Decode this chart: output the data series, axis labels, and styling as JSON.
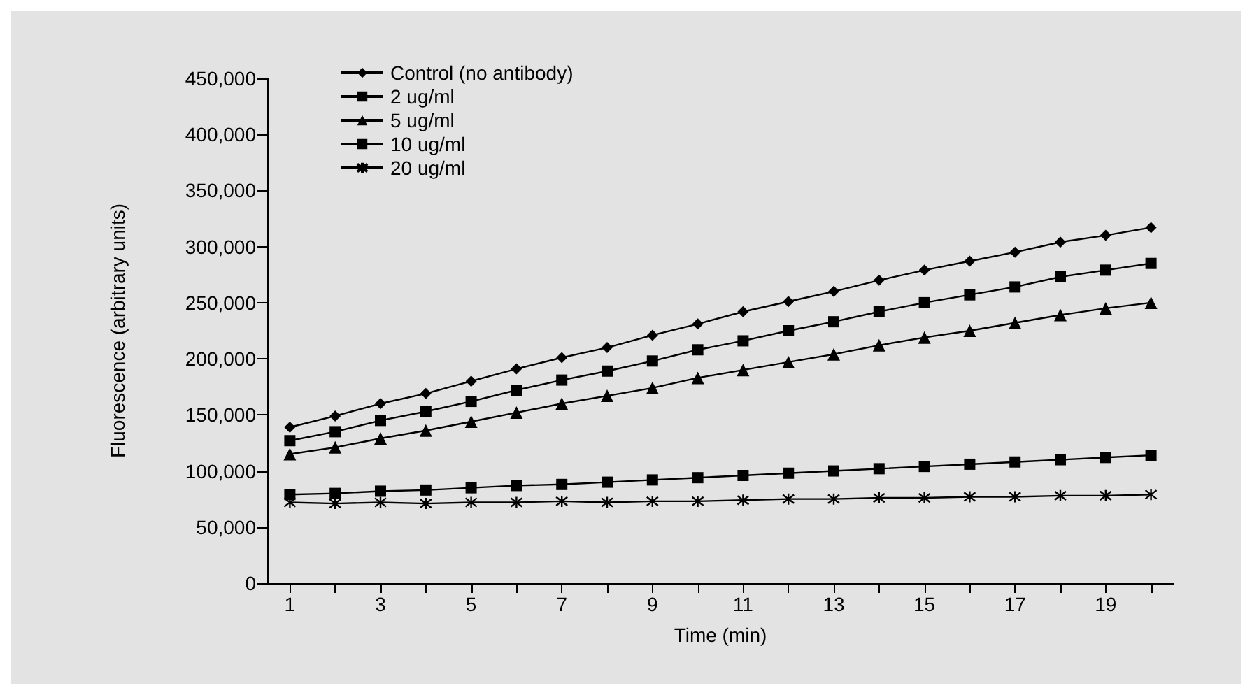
{
  "chart_data": {
    "type": "line",
    "xlabel": "Time (min)",
    "ylabel": "Fluorescence (arbitrary units)",
    "x": [
      1,
      2,
      3,
      4,
      5,
      6,
      7,
      8,
      9,
      10,
      11,
      12,
      13,
      14,
      15,
      16,
      17,
      18,
      19,
      20
    ],
    "xlim": [
      0.5,
      20.5
    ],
    "xticks": [
      1,
      {
        "value": 2,
        "label": null
      },
      3,
      {
        "value": 4,
        "label": null
      },
      5,
      {
        "value": 6,
        "label": null
      },
      7,
      {
        "value": 8,
        "label": null
      },
      9,
      {
        "value": 10,
        "label": null
      },
      11,
      {
        "value": 12,
        "label": null
      },
      13,
      {
        "value": 14,
        "label": null
      },
      15,
      {
        "value": 16,
        "label": null
      },
      17,
      {
        "value": 18,
        "label": null
      },
      19,
      {
        "value": 20,
        "label": null
      }
    ],
    "series": [
      {
        "name": "Control (no antibody)",
        "color": "#000000",
        "marker": "diamond",
        "values": [
          139000,
          149000,
          160000,
          169000,
          180000,
          191000,
          201000,
          210000,
          221000,
          231000,
          242000,
          251000,
          260000,
          270000,
          279000,
          287000,
          295000,
          304000,
          310000,
          317000
        ]
      },
      {
        "name": "2 ug/ml",
        "color": "#000000",
        "marker": "square",
        "values": [
          127000,
          135000,
          145000,
          153000,
          162000,
          172000,
          181000,
          189000,
          198000,
          208000,
          216000,
          225000,
          233000,
          242000,
          250000,
          257000,
          264000,
          273000,
          279000,
          285000
        ]
      },
      {
        "name": "5 ug/ml",
        "color": "#000000",
        "marker": "triangle",
        "values": [
          115000,
          121000,
          129000,
          136000,
          144000,
          152000,
          160000,
          167000,
          174000,
          183000,
          190000,
          197000,
          204000,
          212000,
          219000,
          225000,
          232000,
          239000,
          245000,
          250000
        ]
      },
      {
        "name": "10 ug/ml",
        "color": "#000000",
        "marker": "square",
        "values": [
          79000,
          80000,
          82000,
          83000,
          85000,
          87000,
          88000,
          90000,
          92000,
          94000,
          96000,
          98000,
          100000,
          102000,
          104000,
          106000,
          108000,
          110000,
          112000,
          114000
        ]
      },
      {
        "name": "20 ug/ml",
        "color": "#000000",
        "marker": "cross",
        "values": [
          72000,
          71000,
          72000,
          71000,
          72000,
          72000,
          73000,
          72000,
          73000,
          73000,
          74000,
          75000,
          75000,
          76000,
          76000,
          77000,
          77000,
          78000,
          78000,
          79000
        ]
      }
    ],
    "ylim": [
      0,
      450000
    ],
    "yticks": [
      0,
      {
        "value": 50000,
        "label": "50,000"
      },
      {
        "value": 100000,
        "label": "100,000"
      },
      {
        "value": 150000,
        "label": "150,000"
      },
      {
        "value": 200000,
        "label": "200,000"
      },
      {
        "value": 250000,
        "label": "250,000"
      },
      {
        "value": 300000,
        "label": "300,000"
      },
      {
        "value": 350000,
        "label": "350,000"
      },
      {
        "value": 400000,
        "label": "400,000"
      },
      {
        "value": 450000,
        "label": "450,000"
      }
    ],
    "grid": false,
    "legend": "top left",
    "line_style": "solid"
  }
}
